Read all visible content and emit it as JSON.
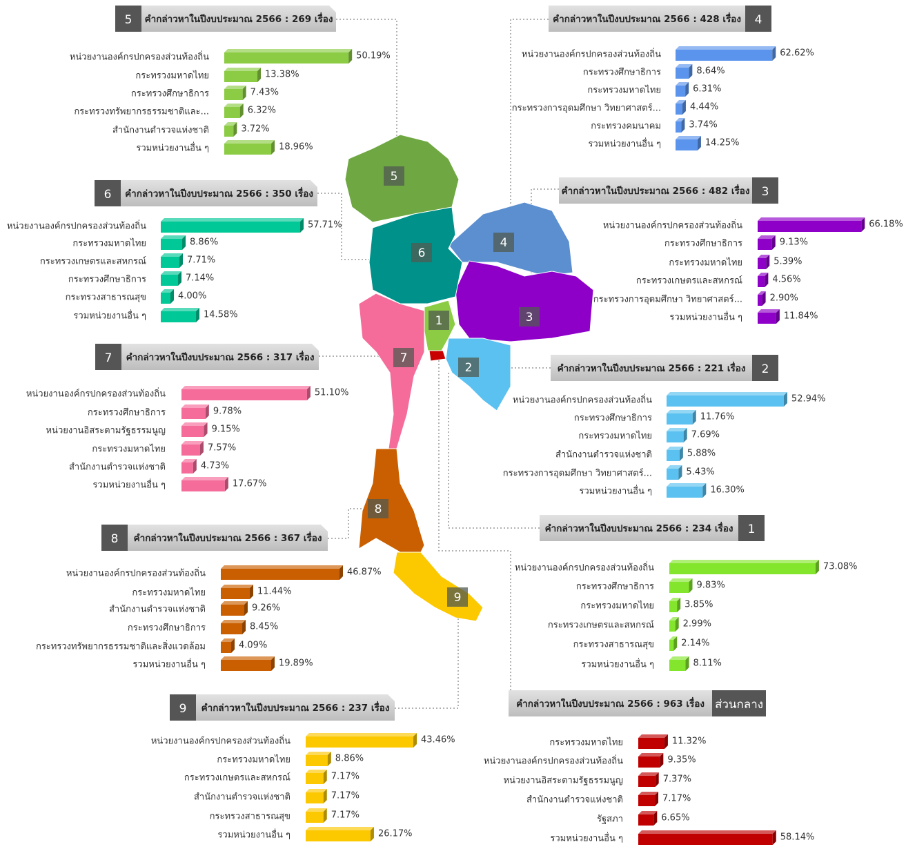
{
  "chart_data": [
    {
      "type": "bar",
      "badge": "5",
      "title": "คำกล่าวหาในปีงบประมาณ 2566 : 269 เรื่อง",
      "color": "#8ccc45",
      "categories": [
        "หน่วยงานองค์กรปกครองส่วนท้องถิ่น",
        "กระทรวงมหาดไทย",
        "กระทรวงศึกษาธิการ",
        "กระทรวงทรัพยากรธรรมชาติและ...",
        "สำนักงานตำรวจแห่งชาติ",
        "รวมหน่วยงานอื่น ๆ"
      ],
      "values": [
        50.19,
        13.38,
        7.43,
        6.32,
        3.72,
        18.96
      ],
      "value_labels": [
        "50.19%",
        "13.38%",
        "7.43%",
        "6.32%",
        "3.72%",
        "18.96%"
      ]
    },
    {
      "type": "bar",
      "badge": "4",
      "title": "คำกล่าวหาในปีงบประมาณ 2566 : 428 เรื่อง",
      "color": "#5b94ec",
      "categories": [
        "หน่วยงานองค์กรปกครองส่วนท้องถิ่น",
        "กระทรวงศึกษาธิการ",
        "กระทรวงมหาดไทย",
        "กระทรวงการอุดมศึกษา วิทยาศาสตร์...",
        "กระทรวงคมนาคม",
        "รวมหน่วยงานอื่น ๆ"
      ],
      "values": [
        62.62,
        8.64,
        6.31,
        4.44,
        3.74,
        14.25
      ],
      "value_labels": [
        "62.62%",
        "8.64%",
        "6.31%",
        "4.44%",
        "3.74%",
        "14.25%"
      ]
    },
    {
      "type": "bar",
      "badge": "6",
      "title": "คำกล่าวหาในปีงบประมาณ 2566 : 350 เรื่อง",
      "color": "#00c896",
      "categories": [
        "หน่วยงานองค์กรปกครองส่วนท้องถิ่น",
        "กระทรวงมหาดไทย",
        "กระทรวงเกษตรและสหกรณ์",
        "กระทรวงศึกษาธิการ",
        "กระทรวงสาธารณสุข",
        "รวมหน่วยงานอื่น ๆ"
      ],
      "values": [
        57.71,
        8.86,
        7.71,
        7.14,
        4,
        14.58
      ],
      "value_labels": [
        "57.71%",
        "8.86%",
        "7.71%",
        "7.14%",
        "4.00%",
        "14.58%"
      ]
    },
    {
      "type": "bar",
      "badge": "3",
      "title": "คำกล่าวหาในปีงบประมาณ 2566 : 482 เรื่อง",
      "color": "#8e00c8",
      "categories": [
        "หน่วยงานองค์กรปกครองส่วนท้องถิ่น",
        "กระทรวงศึกษาธิการ",
        "กระทรวงมหาดไทย",
        "กระทรวงเกษตรและสหกรณ์",
        "กระทรวงการอุดมศึกษา วิทยาศาสตร์...",
        "รวมหน่วยงานอื่น ๆ"
      ],
      "values": [
        66.18,
        9.13,
        5.39,
        4.56,
        2.9,
        11.84
      ],
      "value_labels": [
        "66.18%",
        "9.13%",
        "5.39%",
        "4.56%",
        "2.90%",
        "11.84%"
      ]
    },
    {
      "type": "bar",
      "badge": "7",
      "title": "คำกล่าวหาในปีงบประมาณ 2566 : 317 เรื่อง",
      "color": "#f56c9a",
      "categories": [
        "หน่วยงานองค์กรปกครองส่วนท้องถิ่น",
        "กระทรวงศึกษาธิการ",
        "หน่วยงานอิสระตามรัฐธรรมนูญ",
        "กระทรวงมหาดไทย",
        "สำนักงานตำรวจแห่งชาติ",
        "รวมหน่วยงานอื่น ๆ"
      ],
      "values": [
        51.1,
        9.78,
        9.15,
        7.57,
        4.73,
        17.67
      ],
      "value_labels": [
        "51.10%",
        "9.78%",
        "9.15%",
        "7.57%",
        "4.73%",
        "17.67%"
      ]
    },
    {
      "type": "bar",
      "badge": "2",
      "title": "คำกล่าวหาในปีงบประมาณ 2566 : 221 เรื่อง",
      "color": "#5ac1f0",
      "categories": [
        "หน่วยงานองค์กรปกครองส่วนท้องถิ่น",
        "กระทรวงศึกษาธิการ",
        "กระทรวงมหาดไทย",
        "สำนักงานตำรวจแห่งชาติ",
        "กระทรวงการอุดมศึกษา วิทยาศาสตร์...",
        "รวมหน่วยงานอื่น ๆ"
      ],
      "values": [
        52.94,
        11.76,
        7.69,
        5.88,
        5.43,
        16.3
      ],
      "value_labels": [
        "52.94%",
        "11.76%",
        "7.69%",
        "5.88%",
        "5.43%",
        "16.30%"
      ]
    },
    {
      "type": "bar",
      "badge": "1",
      "title": "คำกล่าวหาในปีงบประมาณ 2566 : 234 เรื่อง",
      "color": "#84e62c",
      "categories": [
        "หน่วยงานองค์กรปกครองส่วนท้องถิ่น",
        "กระทรวงศึกษาธิการ",
        "กระทรวงมหาดไทย",
        "กระทรวงเกษตรและสหกรณ์",
        "กระทรวงสาธารณสุข",
        "รวมหน่วยงานอื่น ๆ"
      ],
      "values": [
        73.08,
        9.83,
        3.85,
        2.99,
        2.14,
        8.11
      ],
      "value_labels": [
        "73.08%",
        "9.83%",
        "3.85%",
        "2.99%",
        "2.14%",
        "8.11%"
      ]
    },
    {
      "type": "bar",
      "badge": "8",
      "title": "คำกล่าวหาในปีงบประมาณ 2566 : 367 เรื่อง",
      "color": "#c95f00",
      "categories": [
        "หน่วยงานองค์กรปกครองส่วนท้องถิ่น",
        "กระทรวงมหาดไทย",
        "สำนักงานตำรวจแห่งชาติ",
        "กระทรวงศึกษาธิการ",
        "กระทรวงทรัพยากรธรรมชาติและสิ่งแวดล้อม",
        "รวมหน่วยงานอื่น ๆ"
      ],
      "values": [
        46.87,
        11.44,
        9.26,
        8.45,
        4.09,
        19.89
      ],
      "value_labels": [
        "46.87%",
        "11.44%",
        "9.26%",
        "8.45%",
        "4.09%",
        "19.89%"
      ]
    },
    {
      "type": "bar",
      "badge": "9",
      "title": "คำกล่าวหาในปีงบประมาณ 2566 : 237 เรื่อง",
      "color": "#fcc800",
      "categories": [
        "หน่วยงานองค์กรปกครองส่วนท้องถิ่น",
        "กระทรวงมหาดไทย",
        "กระทรวงเกษตรและสหกรณ์",
        "สำนักงานตำรวจแห่งชาติ",
        "กระทรวงสาธารณสุข",
        "รวมหน่วยงานอื่น ๆ"
      ],
      "values": [
        43.46,
        8.86,
        7.17,
        7.17,
        7.17,
        26.17
      ],
      "value_labels": [
        "43.46%",
        "8.86%",
        "7.17%",
        "7.17%",
        "7.17%",
        "26.17%"
      ]
    },
    {
      "type": "bar",
      "badge": "ส่วนกลาง",
      "title": "คำกล่าวหาในปีงบประมาณ 2566 : 963 เรื่อง",
      "color": "#c00000",
      "categories": [
        "กระทรวงมหาดไทย",
        "หน่วยงานองค์กรปกครองส่วนท้องถิ่น",
        "หน่วยงานอิสระตามรัฐธรรมนูญ",
        "สำนักงานตำรวจแห่งชาติ",
        "รัฐสภา",
        "รวมหน่วยงานอื่น ๆ"
      ],
      "values": [
        11.32,
        9.35,
        7.37,
        7.17,
        6.65,
        58.14
      ],
      "value_labels": [
        "11.32%",
        "9.35%",
        "7.37%",
        "7.17%",
        "6.65%",
        "58.14%"
      ]
    }
  ]
}
